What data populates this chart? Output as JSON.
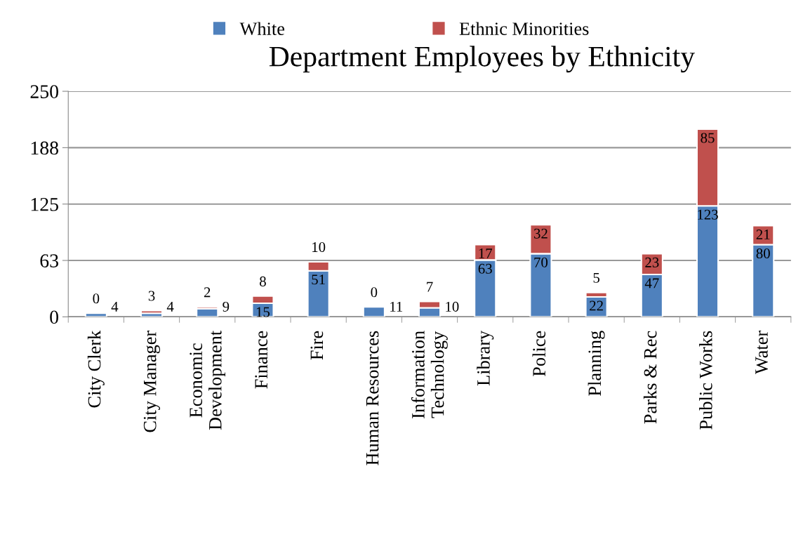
{
  "chart_data": {
    "type": "bar",
    "title": "Department Employees by Ethnicity",
    "stacked": true,
    "categories": [
      "City Clerk",
      "City Manager",
      "Economic\nDevelopment",
      "Finance",
      "Fire",
      "Human Resources",
      "Information\nTechnology",
      "Library",
      "Police",
      "Planning",
      "Parks & Rec",
      "Public Works",
      "Water"
    ],
    "series": [
      {
        "name": "White",
        "color": "#4f81bd",
        "values": [
          4,
          4,
          9,
          15,
          51,
          11,
          10,
          63,
          70,
          22,
          47,
          123,
          80
        ]
      },
      {
        "name": "Ethnic Minorities",
        "color": "#c0504d",
        "values": [
          0,
          3,
          2,
          8,
          10,
          0,
          7,
          17,
          32,
          5,
          23,
          85,
          21
        ]
      }
    ],
    "ylim": [
      0,
      250
    ],
    "yticks": [
      0,
      {
        "value": 62.5,
        "label": "63"
      },
      125,
      {
        "value": 187.5,
        "label": "188"
      },
      250
    ],
    "grid": "y",
    "legend": "top",
    "data_labels": true
  }
}
